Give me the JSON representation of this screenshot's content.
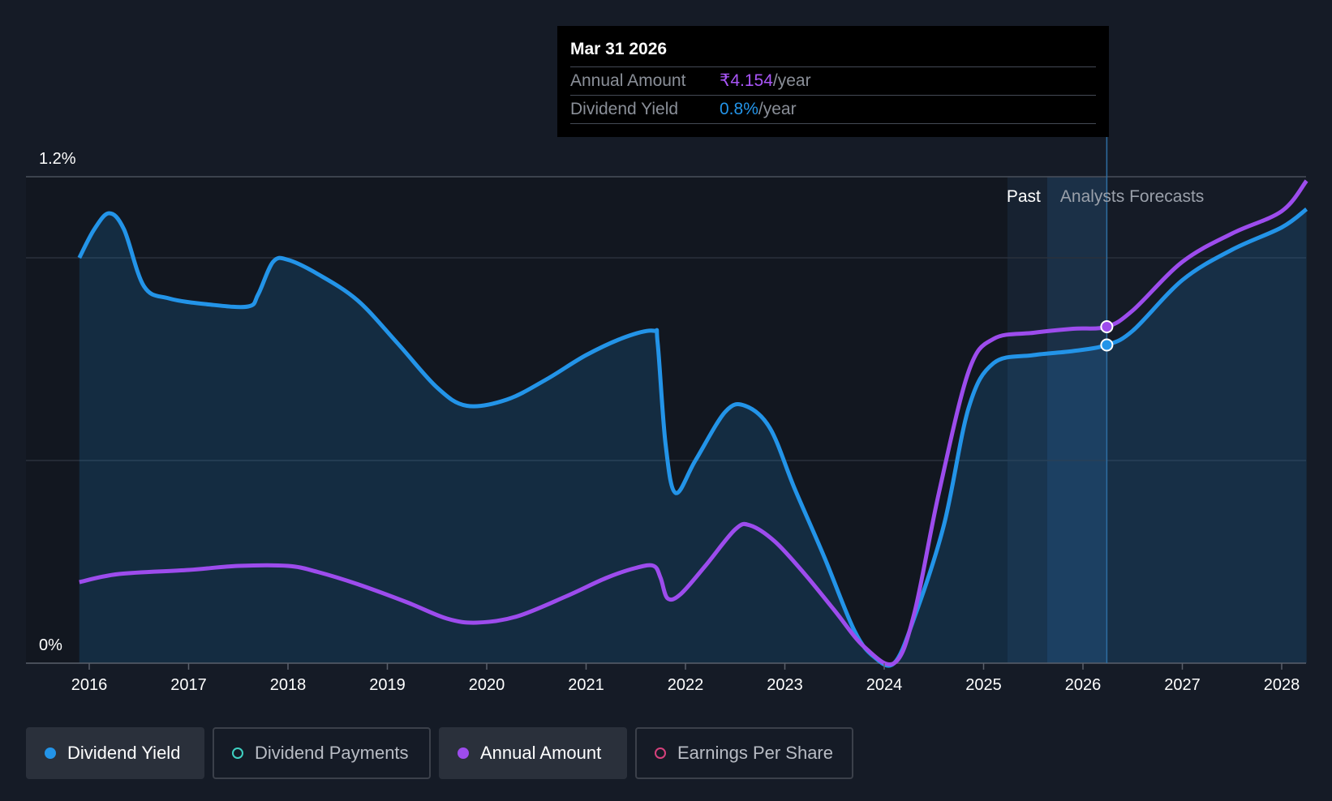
{
  "chart_data": {
    "type": "area",
    "ylim": [
      0,
      1.2
    ],
    "yticks": [
      "1.2%",
      "0%"
    ],
    "xticks": [
      "2016",
      "2017",
      "2018",
      "2019",
      "2020",
      "2021",
      "2022",
      "2023",
      "2024",
      "2025",
      "2026",
      "2027",
      "2028"
    ],
    "regions": {
      "past_label": "Past",
      "forecast_label": "Analysts Forecasts"
    },
    "colors": {
      "dividend_yield": "#2394e8",
      "annual_amount": "#9d4ced",
      "dividend_payments": "#3fd1c2",
      "earnings_per_share": "#d6417c"
    },
    "series": [
      {
        "name": "Dividend Yield",
        "points": [
          [
            2015.9,
            1.0
          ],
          [
            2016.05,
            1.07
          ],
          [
            2016.2,
            1.11
          ],
          [
            2016.35,
            1.07
          ],
          [
            2016.55,
            0.93
          ],
          [
            2016.8,
            0.9
          ],
          [
            2017.2,
            0.885
          ],
          [
            2017.6,
            0.88
          ],
          [
            2017.7,
            0.91
          ],
          [
            2017.85,
            0.99
          ],
          [
            2018.0,
            0.995
          ],
          [
            2018.3,
            0.96
          ],
          [
            2018.7,
            0.895
          ],
          [
            2019.1,
            0.79
          ],
          [
            2019.5,
            0.68
          ],
          [
            2019.8,
            0.635
          ],
          [
            2020.2,
            0.65
          ],
          [
            2020.6,
            0.7
          ],
          [
            2021.0,
            0.76
          ],
          [
            2021.4,
            0.805
          ],
          [
            2021.68,
            0.82
          ],
          [
            2021.72,
            0.79
          ],
          [
            2021.8,
            0.54
          ],
          [
            2021.9,
            0.42
          ],
          [
            2022.1,
            0.5
          ],
          [
            2022.4,
            0.62
          ],
          [
            2022.6,
            0.635
          ],
          [
            2022.85,
            0.58
          ],
          [
            2023.1,
            0.43
          ],
          [
            2023.4,
            0.26
          ],
          [
            2023.7,
            0.08
          ],
          [
            2023.9,
            0.015
          ],
          [
            2024.1,
            0.0
          ],
          [
            2024.3,
            0.11
          ],
          [
            2024.6,
            0.34
          ],
          [
            2024.85,
            0.63
          ],
          [
            2025.1,
            0.74
          ],
          [
            2025.5,
            0.76
          ],
          [
            2025.9,
            0.77
          ],
          [
            2026.24,
            0.785
          ],
          [
            2026.5,
            0.82
          ],
          [
            2027.0,
            0.945
          ],
          [
            2027.5,
            1.02
          ],
          [
            2028.0,
            1.075
          ],
          [
            2028.25,
            1.12
          ]
        ]
      },
      {
        "name": "Annual Amount",
        "points": [
          [
            2015.9,
            0.2
          ],
          [
            2016.3,
            0.22
          ],
          [
            2017.0,
            0.23
          ],
          [
            2017.5,
            0.24
          ],
          [
            2018.0,
            0.24
          ],
          [
            2018.3,
            0.225
          ],
          [
            2018.7,
            0.195
          ],
          [
            2019.2,
            0.15
          ],
          [
            2019.6,
            0.11
          ],
          [
            2019.9,
            0.1
          ],
          [
            2020.3,
            0.115
          ],
          [
            2020.8,
            0.165
          ],
          [
            2021.2,
            0.21
          ],
          [
            2021.5,
            0.235
          ],
          [
            2021.68,
            0.24
          ],
          [
            2021.75,
            0.21
          ],
          [
            2021.82,
            0.16
          ],
          [
            2021.95,
            0.17
          ],
          [
            2022.2,
            0.24
          ],
          [
            2022.5,
            0.33
          ],
          [
            2022.65,
            0.34
          ],
          [
            2022.9,
            0.3
          ],
          [
            2023.2,
            0.22
          ],
          [
            2023.5,
            0.13
          ],
          [
            2023.8,
            0.04
          ],
          [
            2024.1,
            0.0
          ],
          [
            2024.3,
            0.12
          ],
          [
            2024.55,
            0.42
          ],
          [
            2024.85,
            0.72
          ],
          [
            2025.1,
            0.8
          ],
          [
            2025.5,
            0.815
          ],
          [
            2025.9,
            0.825
          ],
          [
            2026.24,
            0.83
          ],
          [
            2026.5,
            0.87
          ],
          [
            2027.0,
            0.99
          ],
          [
            2027.5,
            1.06
          ],
          [
            2028.0,
            1.115
          ],
          [
            2028.25,
            1.19
          ]
        ]
      }
    ],
    "highlight": {
      "x": 2026.24,
      "yield": 0.785,
      "amount": 0.83
    }
  },
  "tooltip": {
    "date": "Mar 31 2026",
    "rows": [
      {
        "label": "Annual Amount",
        "value": "₹4.154",
        "unit": "/year",
        "color": "#a855f7"
      },
      {
        "label": "Dividend Yield",
        "value": "0.8%",
        "unit": "/year",
        "color": "#2394e8"
      }
    ]
  },
  "legend": [
    {
      "label": "Dividend Yield",
      "color": "#2394e8",
      "active": true
    },
    {
      "label": "Dividend Payments",
      "color": "#3fd1c2",
      "active": false
    },
    {
      "label": "Annual Amount",
      "color": "#9d4ced",
      "active": true
    },
    {
      "label": "Earnings Per Share",
      "color": "#d6417c",
      "active": false
    }
  ]
}
